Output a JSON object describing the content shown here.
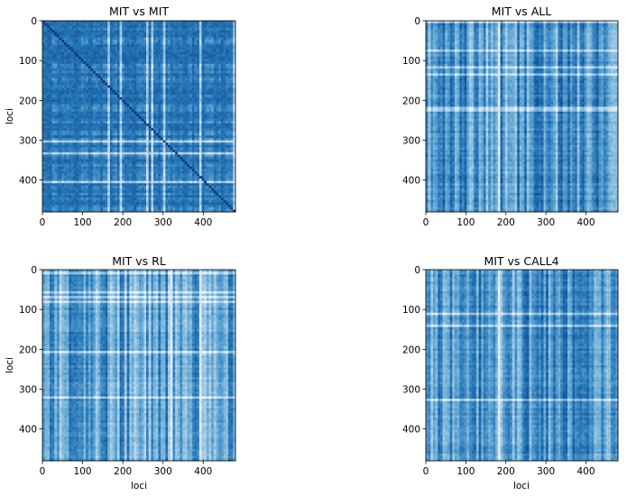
{
  "figure": {
    "background": "#ffffff",
    "colormap": [
      "#08306b",
      "#2171b5",
      "#6baed6",
      "#c6dbef",
      "#f7fbff"
    ]
  },
  "chart_data": [
    {
      "type": "heatmap",
      "title": "MIT vs MIT",
      "xlabel": "",
      "ylabel": "loci",
      "size": 480,
      "xlim": [
        0,
        480
      ],
      "ylim": [
        480,
        0
      ],
      "xticks": [
        0,
        100,
        200,
        300,
        400
      ],
      "yticks": [
        0,
        100,
        200,
        300,
        400
      ],
      "pattern": "dark-diagonal",
      "brightness": 0.22,
      "highlight_columns": []
    },
    {
      "type": "heatmap",
      "title": "MIT vs ALL",
      "xlabel": "",
      "ylabel": "",
      "size": 480,
      "xlim": [
        0,
        480
      ],
      "ylim": [
        480,
        0
      ],
      "xticks": [
        0,
        100,
        200,
        300,
        400
      ],
      "yticks": [
        0,
        100,
        200,
        300,
        400
      ],
      "pattern": "vertical-stripes",
      "brightness": 0.42,
      "highlight_columns": [
        180
      ]
    },
    {
      "type": "heatmap",
      "title": "MIT vs RL",
      "xlabel": "loci",
      "ylabel": "loci",
      "size": 480,
      "xlim": [
        0,
        480
      ],
      "ylim": [
        480,
        0
      ],
      "xticks": [
        0,
        100,
        200,
        300,
        400
      ],
      "yticks": [
        0,
        100,
        200,
        300,
        400
      ],
      "pattern": "vertical-stripes",
      "brightness": 0.46,
      "highlight_columns": [
        320,
        395
      ]
    },
    {
      "type": "heatmap",
      "title": "MIT vs CALL4",
      "xlabel": "loci",
      "ylabel": "",
      "size": 480,
      "xlim": [
        0,
        480
      ],
      "ylim": [
        480,
        0
      ],
      "xticks": [
        0,
        100,
        200,
        300,
        400
      ],
      "yticks": [
        0,
        100,
        200,
        300,
        400
      ],
      "pattern": "vertical-stripes",
      "brightness": 0.42,
      "highlight_columns": [
        180
      ]
    }
  ]
}
